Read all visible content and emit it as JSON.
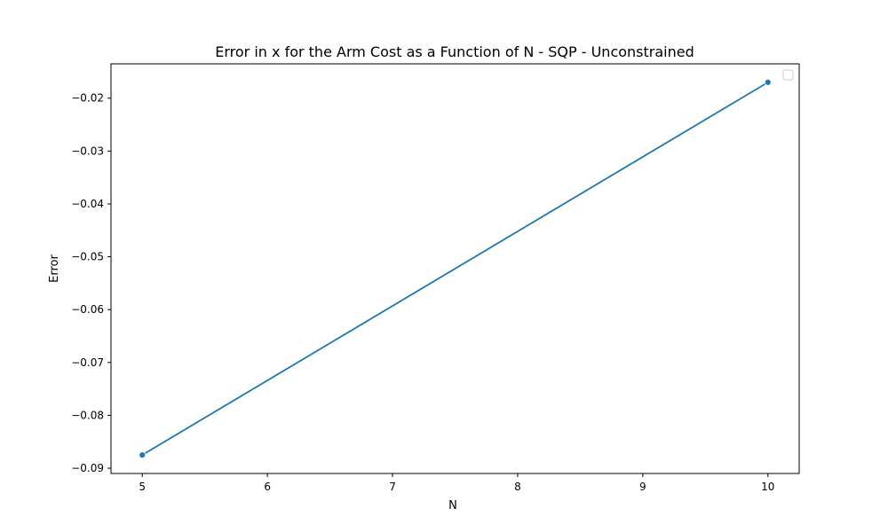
{
  "chart_data": {
    "type": "line",
    "title": "Error in x for the Arm Cost as a Function of N - SQP - Unconstrained",
    "xlabel": "N",
    "ylabel": "Error",
    "x": [
      5,
      10
    ],
    "series": [
      {
        "values": [
          -0.0875,
          -0.017
        ],
        "color": "#1f77b4",
        "marker": "circle"
      }
    ],
    "xlim": [
      4.75,
      10.25
    ],
    "ylim": [
      -0.091,
      -0.0135
    ],
    "xticks": [
      5,
      6,
      7,
      8,
      9,
      10
    ],
    "xtick_labels": [
      "5",
      "6",
      "7",
      "8",
      "9",
      "10"
    ],
    "yticks": [
      -0.09,
      -0.08,
      -0.07,
      -0.06,
      -0.05,
      -0.04,
      -0.03,
      -0.02
    ],
    "ytick_labels": [
      "−0.09",
      "−0.08",
      "−0.07",
      "−0.06",
      "−0.05",
      "−0.04",
      "−0.03",
      "−0.02"
    ],
    "grid": false,
    "legend": {
      "placement": "top-right",
      "entries": []
    }
  }
}
